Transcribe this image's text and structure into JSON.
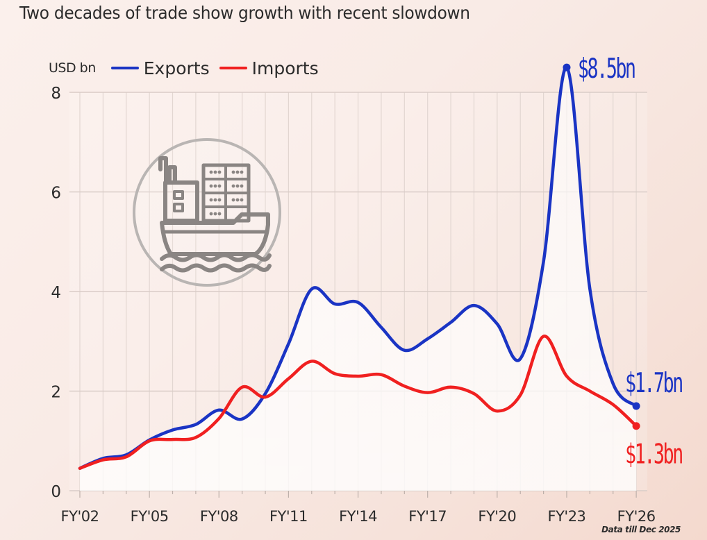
{
  "chart_data": {
    "type": "line",
    "title": "Two decades of trade show growth with recent slowdown",
    "ylabel": "USD bn",
    "xlabel": "",
    "ylim": [
      0,
      8
    ],
    "yticks": [
      0,
      2,
      4,
      6,
      8
    ],
    "grid": true,
    "legend_position": "top-left",
    "x": [
      "FY'02",
      "FY'03",
      "FY'04",
      "FY'05",
      "FY'06",
      "FY'07",
      "FY'08",
      "FY'09",
      "FY'10",
      "FY'11",
      "FY'12",
      "FY'13",
      "FY'14",
      "FY'15",
      "FY'16",
      "FY'17",
      "FY'18",
      "FY'19",
      "FY'20",
      "FY'21",
      "FY'22",
      "FY'23",
      "FY'24",
      "FY'25",
      "FY'26"
    ],
    "xtick_labels": [
      "FY'02",
      "FY'05",
      "FY'08",
      "FY'11",
      "FY'14",
      "FY'17",
      "FY'20",
      "FY'23",
      "FY'26"
    ],
    "series": [
      {
        "name": "Exports",
        "color": "#1a34c4",
        "values": [
          0.45,
          0.65,
          0.72,
          1.02,
          1.22,
          1.33,
          1.62,
          1.44,
          1.95,
          2.95,
          4.05,
          3.75,
          3.78,
          3.28,
          2.82,
          3.05,
          3.38,
          3.72,
          3.35,
          2.65,
          4.6,
          8.5,
          4.05,
          2.15,
          1.7
        ]
      },
      {
        "name": "Imports",
        "color": "#f02020",
        "values": [
          0.45,
          0.62,
          0.68,
          1.0,
          1.03,
          1.07,
          1.45,
          2.08,
          1.88,
          2.25,
          2.6,
          2.35,
          2.3,
          2.33,
          2.1,
          1.97,
          2.08,
          1.95,
          1.6,
          1.92,
          3.1,
          2.3,
          2.0,
          1.73,
          1.3
        ]
      }
    ],
    "annotations": [
      {
        "text": "$8.5bn",
        "series": "Exports",
        "x": "FY'23",
        "y": 8.5
      },
      {
        "text": "$1.7bn",
        "series": "Exports",
        "x": "FY'26",
        "y": 1.7
      },
      {
        "text": "$1.3bn",
        "series": "Imports",
        "x": "FY'26",
        "y": 1.3
      }
    ],
    "footnote": "Data till Dec 2025"
  },
  "legend": {
    "unit_label": "USD bn",
    "items": [
      {
        "label": "Exports",
        "color": "#1a34c4"
      },
      {
        "label": "Imports",
        "color": "#f02020"
      }
    ]
  },
  "icon": "cargo-ship-icon"
}
